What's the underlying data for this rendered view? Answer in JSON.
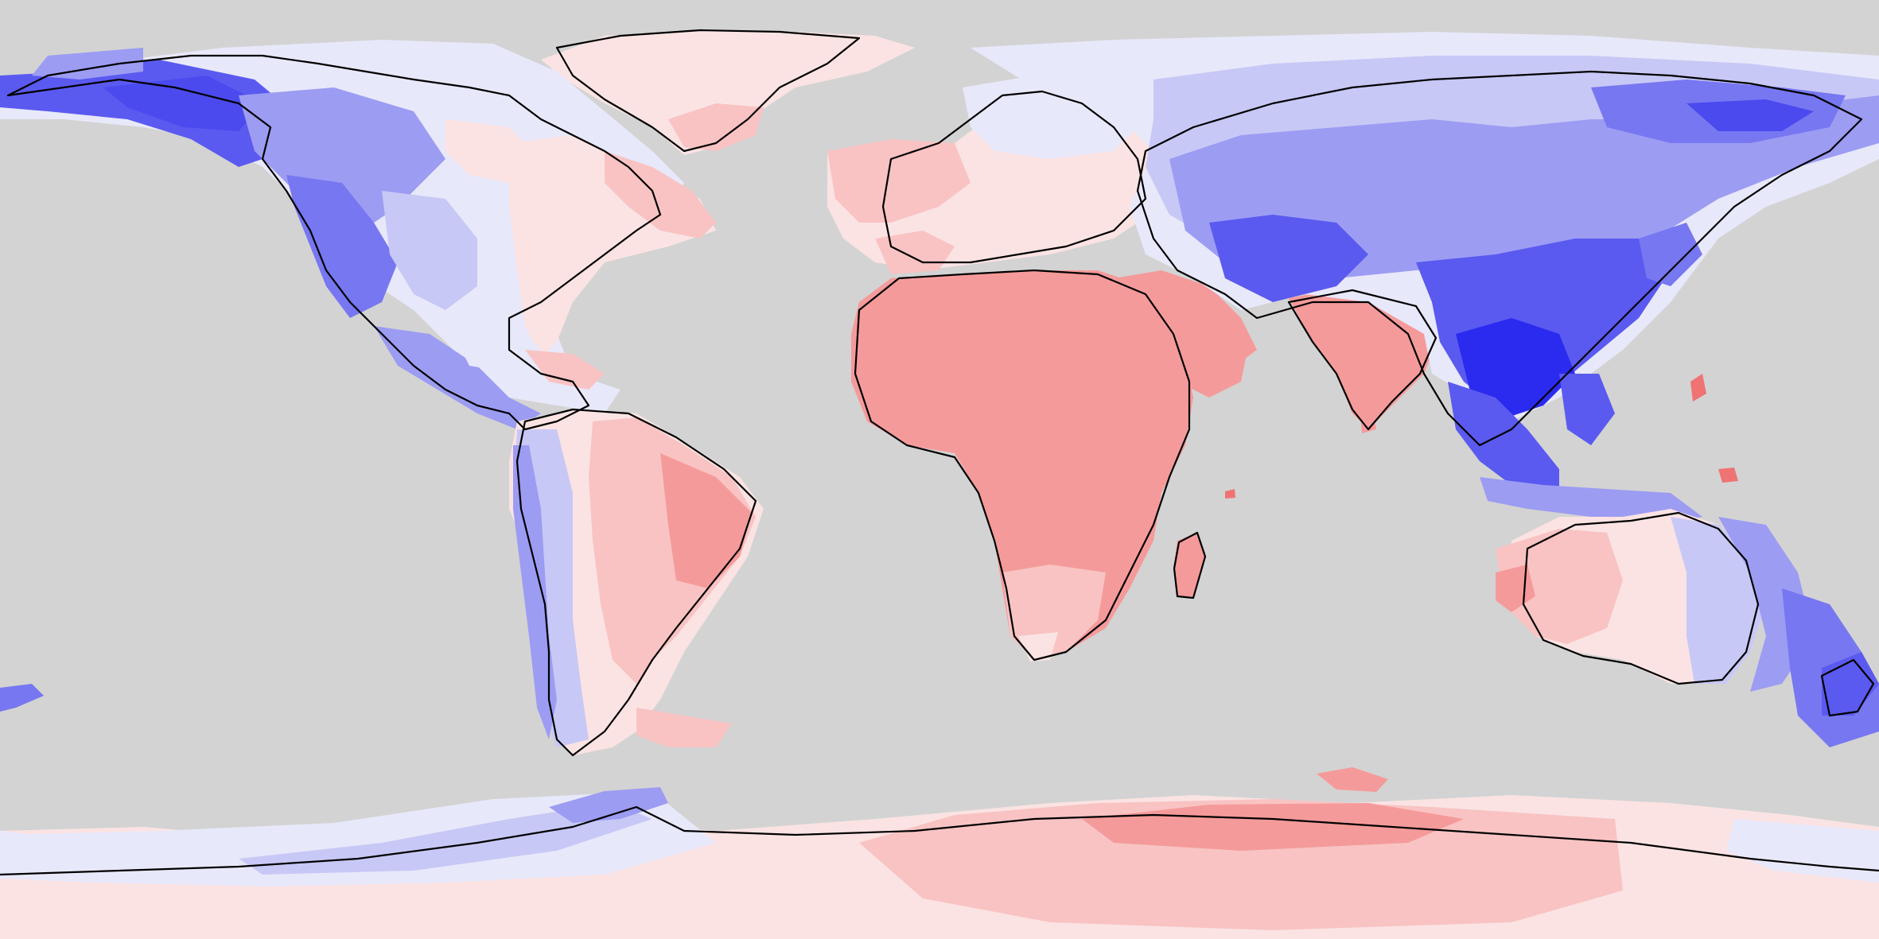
{
  "map": {
    "projection": "equirectangular",
    "ocean_color": "#d3d3d3",
    "coastline_color": "#000000",
    "color_scale": {
      "strong_negative": "#2b2bef",
      "negative": "#5a5af0",
      "mild_negative": "#9c9cf3",
      "weak_negative": "#c8c8f6",
      "faint_negative": "#e8e8fb",
      "faint_positive": "#fbe3e3",
      "weak_positive": "#f9c3c3",
      "positive": "#f59a9a",
      "strong_positive": "#ef7373"
    }
  }
}
